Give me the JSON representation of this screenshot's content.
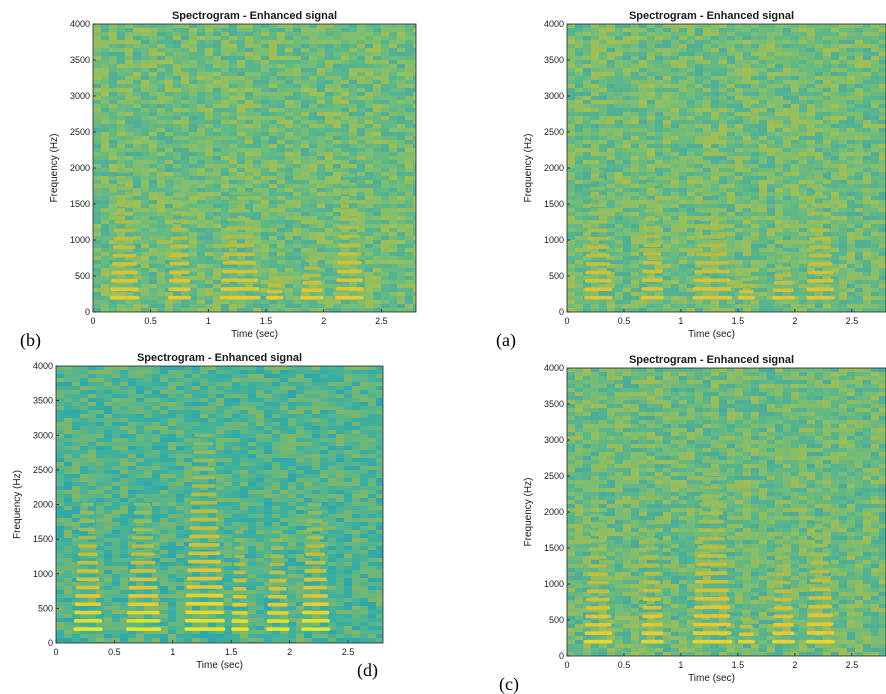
{
  "chart_data": [
    {
      "type": "heatmap",
      "panel_label": "(b)",
      "title": "Spectrogram - Enhanced signal",
      "xlabel": "Time (sec)",
      "ylabel": "Frequency (Hz)",
      "xlim": [
        0,
        2.8
      ],
      "ylim": [
        0,
        4000
      ],
      "xticks": [
        0,
        0.5,
        1,
        1.5,
        2,
        2.5
      ],
      "xtick_labels": [
        "0",
        "0.5",
        "1",
        "1.5",
        "2",
        "2.5"
      ],
      "yticks": [
        0,
        500,
        1000,
        1500,
        2000,
        2500,
        3000,
        3500,
        4000
      ],
      "ytick_labels": [
        "0",
        "500",
        "1000",
        "1500",
        "2000",
        "2500",
        "3000",
        "3500",
        "4000"
      ],
      "colormap": "parula",
      "background_color": "#86c06a",
      "intensity_scale": 0.85,
      "segments": [
        {
          "t0": 0.15,
          "t1": 0.4,
          "fmax": 2050
        },
        {
          "t0": 0.65,
          "t1": 0.85,
          "fmax": 1950
        },
        {
          "t0": 1.1,
          "t1": 1.45,
          "fmax": 1750
        },
        {
          "t0": 1.5,
          "t1": 1.65,
          "fmax": 600
        },
        {
          "t0": 1.8,
          "t1": 2.0,
          "fmax": 900
        },
        {
          "t0": 2.1,
          "t1": 2.35,
          "fmax": 2000
        }
      ]
    },
    {
      "type": "heatmap",
      "panel_label": "(a)",
      "title": "Spectrogram - Enhanced signal",
      "xlabel": "Time (sec)",
      "ylabel": "Frequency (Hz)",
      "xlim": [
        0,
        2.8
      ],
      "ylim": [
        0,
        4000
      ],
      "xticks": [
        0,
        0.5,
        1,
        1.5,
        2,
        2.5
      ],
      "xtick_labels": [
        "0",
        "0.5",
        "1",
        "1.5",
        "2",
        "2.5"
      ],
      "yticks": [
        0,
        500,
        1000,
        1500,
        2000,
        2500,
        3000,
        3500,
        4000
      ],
      "ytick_labels": [
        "0",
        "500",
        "1000",
        "1500",
        "2000",
        "2500",
        "3000",
        "3500",
        "4000"
      ],
      "colormap": "parula",
      "background_color": "#86c06a",
      "intensity_scale": 0.8,
      "segments": [
        {
          "t0": 0.15,
          "t1": 0.4,
          "fmax": 2050
        },
        {
          "t0": 0.65,
          "t1": 0.85,
          "fmax": 2000
        },
        {
          "t0": 1.1,
          "t1": 1.45,
          "fmax": 1750
        },
        {
          "t0": 1.5,
          "t1": 1.65,
          "fmax": 600
        },
        {
          "t0": 1.8,
          "t1": 2.0,
          "fmax": 900
        },
        {
          "t0": 2.1,
          "t1": 2.35,
          "fmax": 2050
        }
      ]
    },
    {
      "type": "heatmap",
      "panel_label": "(d)",
      "title": "Spectrogram - Enhanced signal",
      "xlabel": "Time (sec)",
      "ylabel": "Frequency (Hz)",
      "xlim": [
        0,
        2.8
      ],
      "ylim": [
        0,
        4000
      ],
      "xticks": [
        0,
        0.5,
        1,
        1.5,
        2,
        2.5
      ],
      "xtick_labels": [
        "0",
        "0.5",
        "1",
        "1.5",
        "2",
        "2.5"
      ],
      "yticks": [
        0,
        500,
        1000,
        1500,
        2000,
        2500,
        3000,
        3500,
        4000
      ],
      "ytick_labels": [
        "0",
        "500",
        "1000",
        "1500",
        "2000",
        "2500",
        "3000",
        "3500",
        "4000"
      ],
      "colormap": "parula",
      "background_color": "#3fb09a",
      "intensity_scale": 1.0,
      "segments": [
        {
          "t0": 0.15,
          "t1": 0.4,
          "fmax": 2100
        },
        {
          "t0": 0.6,
          "t1": 0.9,
          "fmax": 2100
        },
        {
          "t0": 1.1,
          "t1": 1.45,
          "fmax": 3100
        },
        {
          "t0": 1.5,
          "t1": 1.65,
          "fmax": 1700
        },
        {
          "t0": 1.8,
          "t1": 2.0,
          "fmax": 1700
        },
        {
          "t0": 2.1,
          "t1": 2.35,
          "fmax": 2100
        }
      ]
    },
    {
      "type": "heatmap",
      "panel_label": "(c)",
      "title": "Spectrogram - Enhanced signal",
      "xlabel": "Time (sec)",
      "ylabel": "Frequency (Hz)",
      "xlim": [
        0,
        2.8
      ],
      "ylim": [
        0,
        4000
      ],
      "xticks": [
        0,
        0.5,
        1,
        1.5,
        2,
        2.5
      ],
      "xtick_labels": [
        "0",
        "0.5",
        "1",
        "1.5",
        "2",
        "2.5"
      ],
      "yticks": [
        0,
        500,
        1000,
        1500,
        2000,
        2500,
        3000,
        3500,
        4000
      ],
      "ytick_labels": [
        "0",
        "500",
        "1000",
        "1500",
        "2000",
        "2500",
        "3000",
        "3500",
        "4000"
      ],
      "colormap": "parula",
      "background_color": "#7cbc72",
      "intensity_scale": 0.9,
      "segments": [
        {
          "t0": 0.15,
          "t1": 0.4,
          "fmax": 2050
        },
        {
          "t0": 0.65,
          "t1": 0.85,
          "fmax": 1950
        },
        {
          "t0": 1.1,
          "t1": 1.45,
          "fmax": 2800
        },
        {
          "t0": 1.5,
          "t1": 1.65,
          "fmax": 700
        },
        {
          "t0": 1.8,
          "t1": 2.0,
          "fmax": 1700
        },
        {
          "t0": 2.1,
          "t1": 2.35,
          "fmax": 2000
        }
      ]
    }
  ]
}
